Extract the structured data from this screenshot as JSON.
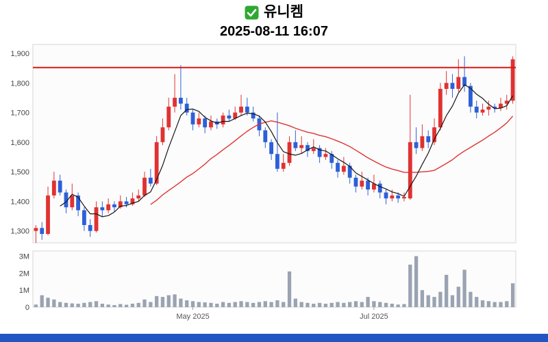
{
  "header": {
    "title": "유니켐",
    "timestamp": "2025-08-11 16:07",
    "icon": "check-mark-icon",
    "icon_color": "#2fa832"
  },
  "chart_data": {
    "type": "candlestick",
    "title": "유니켐",
    "subtitle": "2025-08-11 16:07",
    "legend_position": "none",
    "grid": false,
    "resistance_level": 1852,
    "y_axis": {
      "min": 1260,
      "max": 1930,
      "ticks": [
        {
          "value": 1300,
          "label": "1,300"
        },
        {
          "value": 1400,
          "label": "1,400"
        },
        {
          "value": 1500,
          "label": "1,500"
        },
        {
          "value": 1600,
          "label": "1,600"
        },
        {
          "value": 1700,
          "label": "1,700"
        },
        {
          "value": 1800,
          "label": "1,800"
        },
        {
          "value": 1900,
          "label": "1,900"
        }
      ]
    },
    "x_axis": {
      "ticks": [
        {
          "label": "May 2025",
          "index": 26
        },
        {
          "label": "Jul 2025",
          "index": 56
        }
      ]
    },
    "volume_axis": {
      "max": 3.3,
      "unit": "millions",
      "ticks": [
        {
          "value": 0,
          "label": "0"
        },
        {
          "value": 1,
          "label": "1M"
        },
        {
          "value": 2,
          "label": "2M"
        },
        {
          "value": 3,
          "label": "3M"
        }
      ]
    },
    "moving_averages": {
      "short_period": 5,
      "short_color": "#151515",
      "long_period": 20,
      "long_color": "#e03232"
    },
    "colors": {
      "up": "#e03232",
      "down": "#2d60d8",
      "resistance": "#dd1414",
      "volume": "#9aa3b2",
      "plot_bg": "#fcfcfc",
      "border": "#d6d6d6",
      "axis_text": "#444444",
      "footer": "#2155c4"
    },
    "candle_format": [
      "open",
      "high",
      "low",
      "close",
      "volume_millions"
    ],
    "candles": [
      [
        1300,
        1320,
        1260,
        1310,
        0.15
      ],
      [
        1310,
        1330,
        1270,
        1290,
        0.7
      ],
      [
        1290,
        1450,
        1285,
        1420,
        0.55
      ],
      [
        1420,
        1500,
        1410,
        1470,
        0.45
      ],
      [
        1470,
        1490,
        1420,
        1430,
        0.3
      ],
      [
        1430,
        1440,
        1360,
        1380,
        0.25
      ],
      [
        1380,
        1460,
        1370,
        1420,
        0.22
      ],
      [
        1420,
        1430,
        1350,
        1370,
        0.2
      ],
      [
        1370,
        1380,
        1300,
        1320,
        0.25
      ],
      [
        1320,
        1340,
        1280,
        1300,
        0.3
      ],
      [
        1300,
        1400,
        1295,
        1380,
        0.35
      ],
      [
        1380,
        1400,
        1350,
        1370,
        0.2
      ],
      [
        1370,
        1410,
        1360,
        1390,
        0.15
      ],
      [
        1390,
        1400,
        1365,
        1380,
        0.12
      ],
      [
        1380,
        1420,
        1375,
        1400,
        0.18
      ],
      [
        1400,
        1415,
        1380,
        1390,
        0.14
      ],
      [
        1390,
        1430,
        1385,
        1410,
        0.2
      ],
      [
        1410,
        1440,
        1400,
        1420,
        0.25
      ],
      [
        1420,
        1500,
        1415,
        1480,
        0.45
      ],
      [
        1480,
        1510,
        1450,
        1460,
        0.3
      ],
      [
        1460,
        1620,
        1455,
        1600,
        0.65
      ],
      [
        1600,
        1680,
        1590,
        1650,
        0.6
      ],
      [
        1650,
        1750,
        1640,
        1720,
        0.7
      ],
      [
        1720,
        1830,
        1700,
        1750,
        0.75
      ],
      [
        1750,
        1860,
        1710,
        1730,
        0.5
      ],
      [
        1730,
        1750,
        1690,
        1700,
        0.4
      ],
      [
        1700,
        1710,
        1640,
        1660,
        0.35
      ],
      [
        1660,
        1700,
        1650,
        1680,
        0.3
      ],
      [
        1680,
        1690,
        1630,
        1650,
        0.28
      ],
      [
        1650,
        1690,
        1640,
        1670,
        0.25
      ],
      [
        1670,
        1680,
        1645,
        1660,
        0.2
      ],
      [
        1660,
        1700,
        1650,
        1690,
        0.3
      ],
      [
        1690,
        1710,
        1670,
        1680,
        0.25
      ],
      [
        1680,
        1720,
        1675,
        1700,
        0.3
      ],
      [
        1700,
        1760,
        1690,
        1720,
        0.35
      ],
      [
        1720,
        1750,
        1690,
        1700,
        0.3
      ],
      [
        1700,
        1720,
        1670,
        1680,
        0.25
      ],
      [
        1680,
        1690,
        1620,
        1640,
        0.3
      ],
      [
        1640,
        1650,
        1580,
        1600,
        0.35
      ],
      [
        1600,
        1610,
        1540,
        1560,
        0.3
      ],
      [
        1560,
        1700,
        1500,
        1510,
        0.4
      ],
      [
        1510,
        1560,
        1500,
        1530,
        0.3
      ],
      [
        1530,
        1620,
        1520,
        1600,
        2.1
      ],
      [
        1600,
        1640,
        1570,
        1580,
        0.5
      ],
      [
        1580,
        1620,
        1560,
        1590,
        0.3
      ],
      [
        1590,
        1600,
        1550,
        1570,
        0.25
      ],
      [
        1570,
        1610,
        1560,
        1580,
        0.2
      ],
      [
        1580,
        1590,
        1530,
        1550,
        0.25
      ],
      [
        1550,
        1580,
        1540,
        1560,
        0.2
      ],
      [
        1560,
        1570,
        1510,
        1530,
        0.25
      ],
      [
        1530,
        1540,
        1480,
        1500,
        0.3
      ],
      [
        1500,
        1550,
        1490,
        1520,
        0.25
      ],
      [
        1520,
        1530,
        1460,
        1480,
        0.3
      ],
      [
        1480,
        1490,
        1430,
        1450,
        0.35
      ],
      [
        1450,
        1500,
        1440,
        1470,
        0.3
      ],
      [
        1470,
        1480,
        1420,
        1440,
        0.6
      ],
      [
        1440,
        1490,
        1430,
        1460,
        0.35
      ],
      [
        1460,
        1470,
        1410,
        1430,
        0.3
      ],
      [
        1430,
        1440,
        1390,
        1410,
        0.25
      ],
      [
        1410,
        1440,
        1400,
        1420,
        0.2
      ],
      [
        1420,
        1430,
        1395,
        1410,
        0.15
      ],
      [
        1410,
        1430,
        1400,
        1415,
        0.18
      ],
      [
        1410,
        1760,
        1405,
        1600,
        2.5
      ],
      [
        1600,
        1650,
        1560,
        1580,
        3.0
      ],
      [
        1580,
        1660,
        1570,
        1620,
        1.0
      ],
      [
        1620,
        1640,
        1580,
        1600,
        0.7
      ],
      [
        1600,
        1680,
        1590,
        1650,
        0.6
      ],
      [
        1650,
        1800,
        1640,
        1780,
        0.9
      ],
      [
        1780,
        1840,
        1760,
        1800,
        1.9
      ],
      [
        1800,
        1830,
        1750,
        1780,
        0.7
      ],
      [
        1780,
        1880,
        1770,
        1820,
        1.2
      ],
      [
        1820,
        1890,
        1770,
        1790,
        2.2
      ],
      [
        1790,
        1800,
        1700,
        1720,
        0.9
      ],
      [
        1720,
        1740,
        1680,
        1700,
        0.6
      ],
      [
        1700,
        1730,
        1690,
        1710,
        0.4
      ],
      [
        1710,
        1740,
        1690,
        1720,
        0.35
      ],
      [
        1720,
        1730,
        1700,
        1715,
        0.3
      ],
      [
        1715,
        1750,
        1705,
        1730,
        0.3
      ],
      [
        1730,
        1760,
        1710,
        1740,
        0.35
      ],
      [
        1740,
        1890,
        1730,
        1880,
        1.4
      ]
    ]
  }
}
